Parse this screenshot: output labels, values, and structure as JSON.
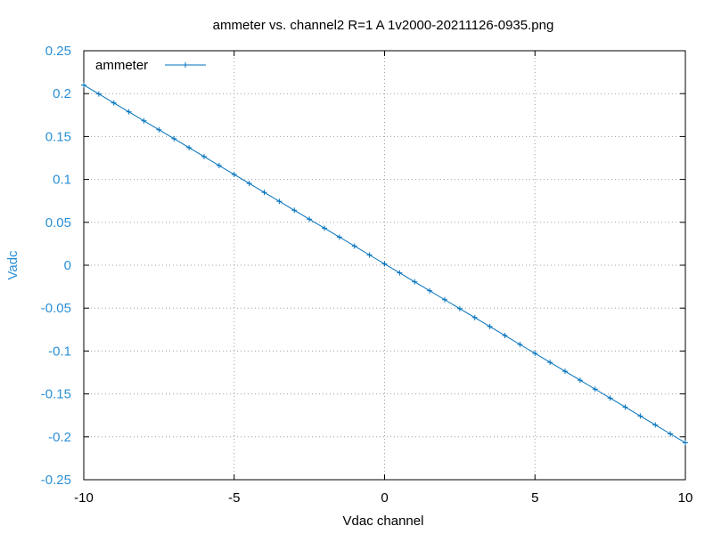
{
  "chart_data": {
    "type": "line",
    "title": "ammeter vs. channel2  R=1  A 1v2000-20211126-0935.png",
    "xlabel": "Vdac channel",
    "ylabel": "Vadc",
    "xlim": [
      -10,
      10
    ],
    "ylim": [
      -0.25,
      0.25
    ],
    "x_ticks": [
      -10,
      -5,
      0,
      5,
      10
    ],
    "y_ticks": [
      0.25,
      0.2,
      0.15,
      0.1,
      0.05,
      0,
      -0.05,
      -0.1,
      -0.15,
      -0.2,
      -0.25
    ],
    "x_tick_labels": [
      "-10",
      "-5",
      "0",
      "5",
      "10"
    ],
    "y_tick_labels": [
      "0.25",
      "0.2",
      "0.15",
      "0.1",
      "0.05",
      "0",
      "-0.05",
      "-0.1",
      "-0.15",
      "-0.2",
      "-0.25"
    ],
    "grid": true,
    "legend_position": "top-left",
    "colors": {
      "series": "#0072bd",
      "ylabel": "#2b8fd6",
      "yticks": "#2b8fd6",
      "axis": "#000000",
      "grid": "#a0a0a0"
    },
    "series": [
      {
        "name": "ammeter",
        "marker": "plus",
        "x_start": -10,
        "x_end": 10,
        "point_count": 41,
        "y_at_x_start": 0.21,
        "y_at_x_end": -0.207
      }
    ]
  }
}
